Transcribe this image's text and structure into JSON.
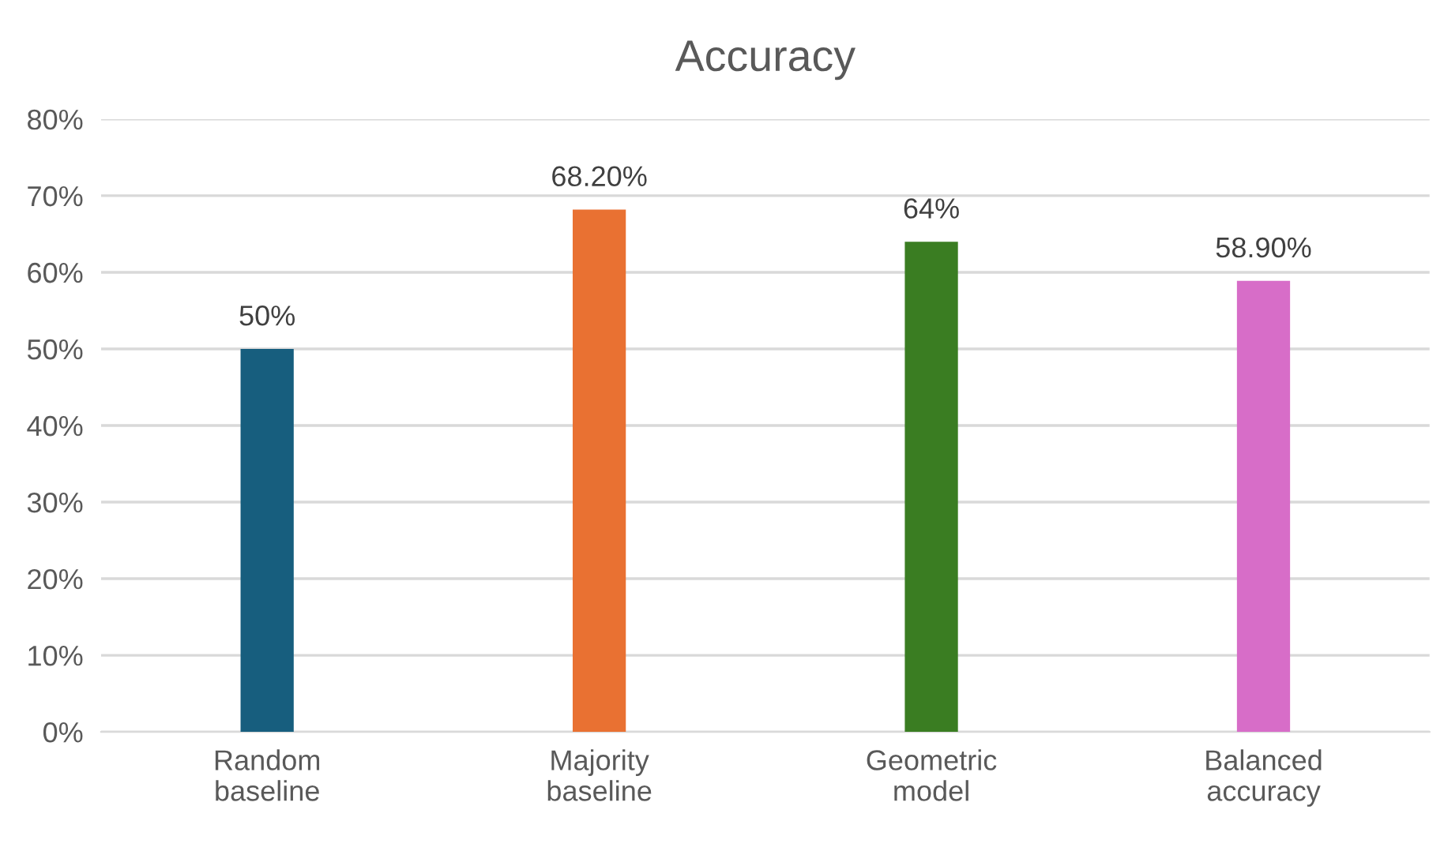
{
  "chart_data": {
    "type": "bar",
    "title": "Accuracy",
    "categories": [
      "Random baseline",
      "Majority baseline",
      "Geometric model",
      "Balanced accuracy"
    ],
    "values": [
      50,
      68.2,
      64,
      58.9
    ],
    "colors": [
      "#175e7e",
      "#e97132",
      "#3a7d22",
      "#d76dc8"
    ],
    "value_labels": [
      "50%",
      "68.20%",
      "64%",
      "58.90%"
    ],
    "ylim": [
      0,
      80
    ],
    "yticks": [
      {
        "value": 0,
        "label": "0%"
      },
      {
        "value": 10,
        "label": "10%"
      },
      {
        "value": 20,
        "label": "20%"
      },
      {
        "value": 30,
        "label": "30%"
      },
      {
        "value": 40,
        "label": "40%"
      },
      {
        "value": 50,
        "label": "50%"
      },
      {
        "value": 60,
        "label": "60%"
      },
      {
        "value": 70,
        "label": "70%"
      },
      {
        "value": 80,
        "label": "80%"
      }
    ],
    "grid": "y"
  }
}
